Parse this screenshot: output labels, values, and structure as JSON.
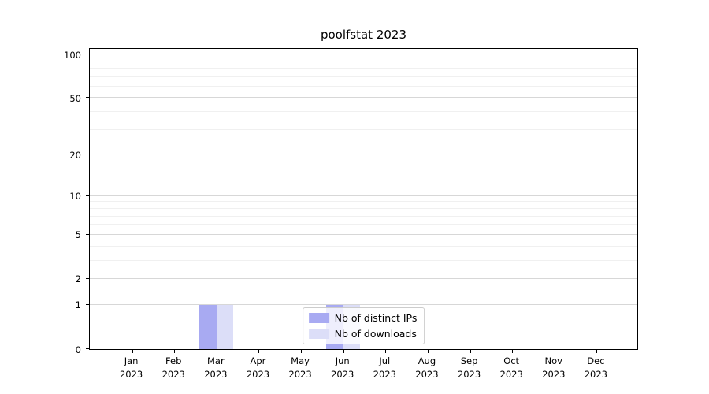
{
  "chart_data": {
    "type": "bar",
    "title": "poolfstat 2023",
    "x_tick_months": [
      "Jan",
      "Feb",
      "Mar",
      "Apr",
      "May",
      "Jun",
      "Jul",
      "Aug",
      "Sep",
      "Oct",
      "Nov",
      "Dec"
    ],
    "x_tick_year": "2023",
    "categories": [
      "Jan 2023",
      "Feb 2023",
      "Mar 2023",
      "Apr 2023",
      "May 2023",
      "Jun 2023",
      "Jul 2023",
      "Aug 2023",
      "Sep 2023",
      "Oct 2023",
      "Nov 2023",
      "Dec 2023"
    ],
    "series": [
      {
        "name": "Nb of distinct IPs",
        "color": "#a8aaf2",
        "values": [
          0,
          0,
          1,
          0,
          0,
          1,
          0,
          0,
          0,
          0,
          0,
          0
        ]
      },
      {
        "name": "Nb of downloads",
        "color": "#dcdef8",
        "values": [
          0,
          0,
          1,
          0,
          0,
          1,
          0,
          0,
          0,
          0,
          0,
          0
        ]
      }
    ],
    "y_scale": "log10(value+1)",
    "y_major_ticks": [
      0,
      1,
      2,
      5,
      10,
      20,
      50,
      100
    ],
    "y_minor_gridlines": [
      3,
      4,
      6,
      7,
      8,
      9,
      30,
      40,
      60,
      70,
      80,
      90
    ],
    "ylim": [
      0,
      112
    ],
    "grid": "horizontal",
    "legend_position": "lower center"
  },
  "colors": {
    "major_grid": "#d7d7d7",
    "minor_grid": "#f0f0f0",
    "spine": "#000000",
    "legend_border": "#cccccc",
    "background": "#ffffff"
  }
}
